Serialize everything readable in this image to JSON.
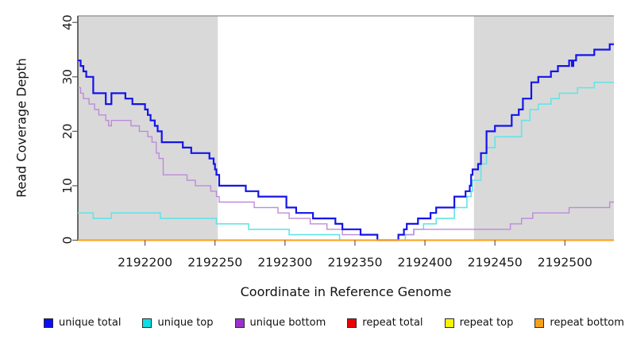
{
  "figure": {
    "xlabel": "Coordinate in Reference Genome",
    "ylabel": "Read Coverage Depth"
  },
  "chart_data": {
    "type": "line",
    "step": "after",
    "title": "",
    "xlabel": "Coordinate in Reference Genome",
    "ylabel": "Read Coverage Depth",
    "xlim": [
      2192152,
      2192535
    ],
    "ylim": [
      0,
      41.2
    ],
    "xticks": [
      2192200,
      2192250,
      2192300,
      2192350,
      2192400,
      2192450,
      2192500
    ],
    "yticks": [
      0,
      10,
      20,
      30,
      40
    ],
    "grid": false,
    "legend_position": "bottom",
    "background_color": "#ffffff",
    "plot_border_color": "#8c8c8c",
    "axis_color": "#3c3c3c",
    "tick_color": "#5a5a5a",
    "shaded_regions": [
      {
        "from": 2192152,
        "to": 2192252,
        "color": "#d9d9d9"
      },
      {
        "from": 2192435,
        "to": 2192535,
        "color": "#d9d9d9"
      }
    ],
    "series": [
      {
        "id": "unique-total",
        "name": "unique total",
        "color": "#1414eb",
        "legend_color": "#0e0ef5",
        "width": 2.2,
        "points": [
          [
            2192152,
            33
          ],
          [
            2192154,
            32
          ],
          [
            2192156,
            31
          ],
          [
            2192158,
            30
          ],
          [
            2192163,
            27
          ],
          [
            2192172,
            25
          ],
          [
            2192176,
            27
          ],
          [
            2192186,
            26
          ],
          [
            2192191,
            25
          ],
          [
            2192200,
            24
          ],
          [
            2192202,
            23
          ],
          [
            2192204,
            22
          ],
          [
            2192207,
            21
          ],
          [
            2192209,
            20
          ],
          [
            2192212,
            18
          ],
          [
            2192227,
            17
          ],
          [
            2192233,
            16
          ],
          [
            2192246,
            15
          ],
          [
            2192249,
            14
          ],
          [
            2192250,
            13
          ],
          [
            2192251,
            12
          ],
          [
            2192253,
            10
          ],
          [
            2192272,
            9
          ],
          [
            2192281,
            8
          ],
          [
            2192301,
            6
          ],
          [
            2192308,
            5
          ],
          [
            2192320,
            4
          ],
          [
            2192336,
            3
          ],
          [
            2192341,
            2
          ],
          [
            2192354,
            1
          ],
          [
            2192366,
            0
          ],
          [
            2192381,
            1
          ],
          [
            2192385,
            2
          ],
          [
            2192387,
            3
          ],
          [
            2192395,
            4
          ],
          [
            2192404,
            5
          ],
          [
            2192408,
            6
          ],
          [
            2192421,
            8
          ],
          [
            2192429,
            9
          ],
          [
            2192432,
            10
          ],
          [
            2192433,
            12
          ],
          [
            2192434,
            13
          ],
          [
            2192438,
            14
          ],
          [
            2192440,
            16
          ],
          [
            2192444,
            20
          ],
          [
            2192450,
            21
          ],
          [
            2192462,
            23
          ],
          [
            2192467,
            24
          ],
          [
            2192470,
            26
          ],
          [
            2192476,
            29
          ],
          [
            2192481,
            30
          ],
          [
            2192490,
            31
          ],
          [
            2192495,
            32
          ],
          [
            2192503,
            33
          ],
          [
            2192505,
            32
          ],
          [
            2192506,
            33
          ],
          [
            2192508,
            34
          ],
          [
            2192521,
            35
          ],
          [
            2192532,
            36
          ]
        ]
      },
      {
        "id": "unique-top",
        "name": "unique top",
        "color": "#63e4e6",
        "legend_color": "#0cdde6",
        "width": 1.6,
        "points": [
          [
            2192152,
            5
          ],
          [
            2192163,
            4
          ],
          [
            2192176,
            5
          ],
          [
            2192211,
            4
          ],
          [
            2192251,
            3
          ],
          [
            2192274,
            2
          ],
          [
            2192303,
            1
          ],
          [
            2192339,
            0
          ],
          [
            2192386,
            1
          ],
          [
            2192392,
            2
          ],
          [
            2192399,
            3
          ],
          [
            2192408,
            4
          ],
          [
            2192421,
            6
          ],
          [
            2192430,
            8
          ],
          [
            2192433,
            9
          ],
          [
            2192434,
            11
          ],
          [
            2192440,
            14
          ],
          [
            2192444,
            17
          ],
          [
            2192450,
            19
          ],
          [
            2192469,
            22
          ],
          [
            2192475,
            24
          ],
          [
            2192481,
            25
          ],
          [
            2192490,
            26
          ],
          [
            2192496,
            27
          ],
          [
            2192509,
            28
          ],
          [
            2192521,
            29
          ]
        ]
      },
      {
        "id": "unique-bottom",
        "name": "unique bottom",
        "color": "#bc8bdc",
        "legend_color": "#9932cc",
        "width": 1.4,
        "points": [
          [
            2192152,
            28
          ],
          [
            2192154,
            27
          ],
          [
            2192156,
            26
          ],
          [
            2192160,
            25
          ],
          [
            2192164,
            24
          ],
          [
            2192167,
            23
          ],
          [
            2192172,
            22
          ],
          [
            2192174,
            21
          ],
          [
            2192176,
            22
          ],
          [
            2192190,
            21
          ],
          [
            2192196,
            20
          ],
          [
            2192202,
            19
          ],
          [
            2192205,
            18
          ],
          [
            2192208,
            16
          ],
          [
            2192210,
            15
          ],
          [
            2192213,
            12
          ],
          [
            2192230,
            11
          ],
          [
            2192236,
            10
          ],
          [
            2192247,
            9
          ],
          [
            2192251,
            8
          ],
          [
            2192253,
            7
          ],
          [
            2192278,
            6
          ],
          [
            2192295,
            5
          ],
          [
            2192303,
            4
          ],
          [
            2192318,
            3
          ],
          [
            2192330,
            2
          ],
          [
            2192341,
            1
          ],
          [
            2192366,
            0
          ],
          [
            2192381,
            1
          ],
          [
            2192392,
            2
          ],
          [
            2192461,
            3
          ],
          [
            2192469,
            4
          ],
          [
            2192477,
            5
          ],
          [
            2192503,
            6
          ],
          [
            2192532,
            7
          ]
        ]
      },
      {
        "id": "repeat-total",
        "name": "repeat total",
        "color": "#dd0000",
        "legend_color": "#ee0000",
        "width": 1.5,
        "points": [
          [
            2192152,
            0
          ]
        ]
      },
      {
        "id": "repeat-top",
        "name": "repeat top",
        "color": "#f2f200",
        "legend_color": "#f5f500",
        "width": 1.5,
        "points": [
          [
            2192152,
            0
          ]
        ]
      },
      {
        "id": "repeat-bottom",
        "name": "repeat bottom",
        "color": "#ff9e1b",
        "legend_color": "#f5a018",
        "width": 2,
        "points": [
          [
            2192152,
            0
          ]
        ]
      }
    ]
  }
}
